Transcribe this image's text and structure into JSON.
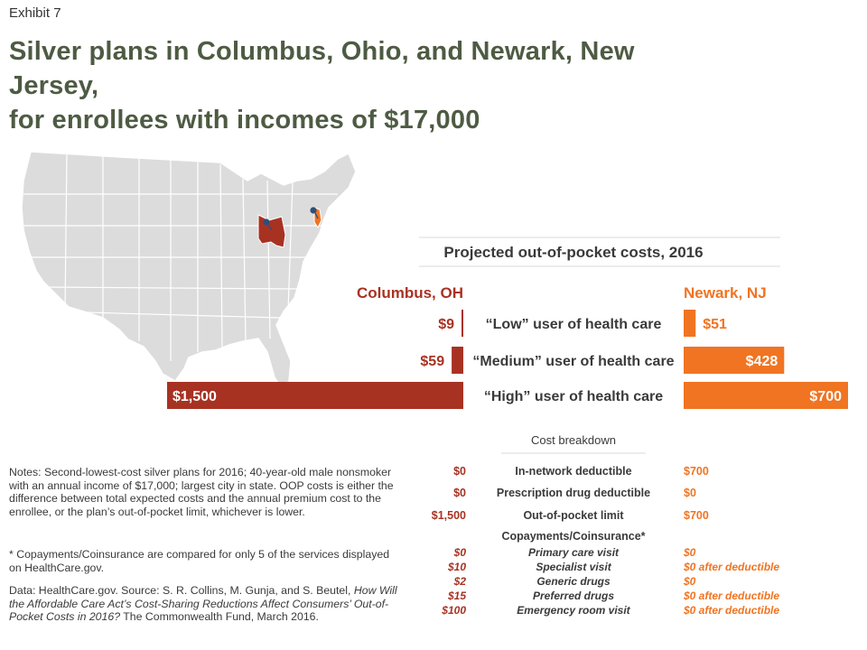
{
  "header": {
    "exhibit": "Exhibit 7",
    "title_line1": "Silver plans in Columbus, Ohio, and Newark, New",
    "title_line2": "Jersey,",
    "title_line3": "for enrollees with incomes of $17,000"
  },
  "colors": {
    "columbus": "#a83222",
    "newark": "#f07422",
    "map_gray": "#dcdcdc",
    "title_green": "#4e5b43",
    "text_dark": "#3a3a3a",
    "pin_blue": "#2f4f7a"
  },
  "map": {
    "highlighted_states": [
      "Ohio",
      "New Jersey"
    ]
  },
  "chart_data": {
    "type": "bar",
    "title": "Projected out-of-pocket costs, 2016",
    "series": [
      {
        "name": "Columbus, OH",
        "values": [
          9,
          59,
          1500
        ],
        "labels": [
          "$9",
          "$59",
          "$1,500"
        ]
      },
      {
        "name": "Newark, NJ",
        "values": [
          51,
          428,
          700
        ],
        "labels": [
          "$51",
          "$428",
          "$700"
        ]
      }
    ],
    "categories": [
      "“Low” user of health care",
      "“Medium” user of health care",
      "“High” user of health care"
    ],
    "xlim": [
      0,
      1500
    ]
  },
  "breakdown": {
    "title": "Cost breakdown",
    "rows": [
      {
        "label": "In-network deductible",
        "columbus": "$0",
        "newark": "$700"
      },
      {
        "label": "Prescription drug deductible",
        "columbus": "$0",
        "newark": "$0"
      },
      {
        "label": "Out-of-pocket limit",
        "columbus": "$1,500",
        "newark": "$700"
      }
    ],
    "copay_header": "Copayments/Coinsurance*",
    "copay_rows": [
      {
        "label": "Primary care visit",
        "columbus": "$0",
        "newark": "$0"
      },
      {
        "label": "Specialist visit",
        "columbus": "$10",
        "newark": "$0 after deductible"
      },
      {
        "label": "Generic drugs",
        "columbus": "$2",
        "newark": "$0"
      },
      {
        "label": "Preferred drugs",
        "columbus": "$15",
        "newark": "$0 after deductible"
      },
      {
        "label": "Emergency room visit",
        "columbus": "$100",
        "newark": "$0 after deductible"
      }
    ]
  },
  "notes": {
    "notes": "Notes: Second-lowest-cost silver plans for 2016; 40-year-old male nonsmoker with an annual income of $17,000; largest city in state. OOP costs is either the difference between total expected costs and the annual premium cost to the enrollee, or the plan’s out-of-pocket limit, whichever is lower.",
    "footnote": "* Copayments/Coinsurance are compared for only 5 of the services displayed on HealthCare.gov.",
    "data_prefix": "Data: HealthCare.gov. Source: S. R. Collins, M. Gunja, and S. Beutel, ",
    "data_title": "How Will the Affordable Care Act’s Cost-Sharing Reductions Affect Consumers’ Out-of-Pocket Costs in 2016?",
    "data_suffix": " The Commonwealth Fund, March 2016."
  }
}
